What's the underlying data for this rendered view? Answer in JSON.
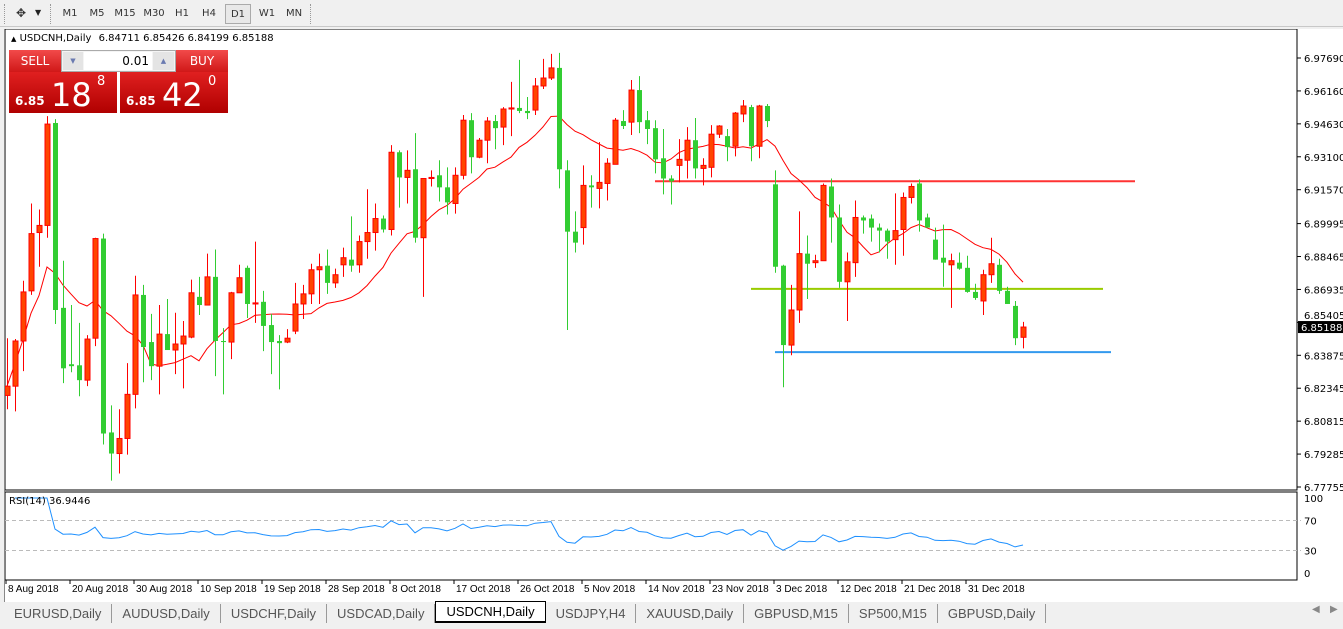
{
  "toolbar": {
    "tool_icon": "crosshair-arrows-icon",
    "timeframes": [
      "M1",
      "M5",
      "M15",
      "M30",
      "H1",
      "H4",
      "D1",
      "W1",
      "MN"
    ],
    "active_timeframe": "D1"
  },
  "chart": {
    "symbol": "USDCNH,Daily",
    "ohlc": "6.84711 6.85426 6.84199 6.85188"
  },
  "trade_panel": {
    "sell_label": "SELL",
    "buy_label": "BUY",
    "lot": "0.01",
    "sell_price": {
      "prefix": "6.85",
      "big": "18",
      "small": "8"
    },
    "buy_price": {
      "prefix": "6.85",
      "big": "42",
      "small": "0"
    }
  },
  "chart_data": {
    "type": "candlestick",
    "price_ticks": [
      "6.97690",
      "6.96160",
      "6.94630",
      "6.93100",
      "6.91570",
      "6.89995",
      "6.88465",
      "6.86935",
      "6.85405",
      "6.83875",
      "6.82345",
      "6.80815",
      "6.79285",
      "6.77755"
    ],
    "ylim": [
      6.77755,
      6.9769
    ],
    "current_price": "6.85188",
    "date_labels": [
      {
        "bar": 0,
        "label": "8 Aug 2018"
      },
      {
        "bar": 8,
        "label": "20 Aug 2018"
      },
      {
        "bar": 16,
        "label": "30 Aug 2018"
      },
      {
        "bar": 24,
        "label": "10 Sep 2018"
      },
      {
        "bar": 32,
        "label": "19 Sep 2018"
      },
      {
        "bar": 40,
        "label": "28 Sep 2018"
      },
      {
        "bar": 48,
        "label": "8 Oct 2018"
      },
      {
        "bar": 56,
        "label": "17 Oct 2018"
      },
      {
        "bar": 64,
        "label": "26 Oct 2018"
      },
      {
        "bar": 72,
        "label": "5 Nov 2018"
      },
      {
        "bar": 80,
        "label": "14 Nov 2018"
      },
      {
        "bar": 88,
        "label": "23 Nov 2018"
      },
      {
        "bar": 96,
        "label": "3 Dec 2018"
      },
      {
        "bar": 104,
        "label": "12 Dec 2018"
      },
      {
        "bar": 112,
        "label": "21 Dec 2018"
      },
      {
        "bar": 120,
        "label": "31 Dec 2018"
      }
    ],
    "horizontal_lines": [
      {
        "price": 6.9196,
        "color": "#ff3333",
        "from_bar": 81,
        "to_bar": 141
      },
      {
        "price": 6.8696,
        "color": "#99cc00",
        "from_bar": 93,
        "to_bar": 137
      },
      {
        "price": 6.8402,
        "color": "#3399ee",
        "from_bar": 96,
        "to_bar": 138
      }
    ],
    "colors": {
      "bull": "#ff4500",
      "bull_border": "#ff0000",
      "bear": "#32cd32",
      "ma": "#ff0000",
      "rsi": "#1e90ff"
    },
    "candles_ohlc": [
      [
        6.8201,
        6.8467,
        6.8137,
        6.8244
      ],
      [
        6.8244,
        6.8463,
        6.8127,
        6.8454
      ],
      [
        6.8454,
        6.8734,
        6.8314,
        6.8682
      ],
      [
        6.8687,
        6.9093,
        6.8668,
        6.8953
      ],
      [
        6.8958,
        6.9065,
        6.8799,
        6.8991
      ],
      [
        6.8991,
        6.9499,
        6.8934,
        6.9462
      ],
      [
        6.9467,
        6.9485,
        6.8533,
        6.8598
      ],
      [
        6.8608,
        6.8827,
        6.8258,
        6.8327
      ],
      [
        6.8346,
        6.8621,
        6.8309,
        6.8337
      ],
      [
        6.8341,
        6.8538,
        6.8197,
        6.8272
      ],
      [
        6.8272,
        6.8481,
        6.8244,
        6.8463
      ],
      [
        6.8467,
        6.8934,
        6.843,
        6.893
      ],
      [
        6.893,
        6.8953,
        6.7973,
        6.8024
      ],
      [
        6.8029,
        6.8155,
        6.7805,
        6.7931
      ],
      [
        6.7931,
        6.8137,
        6.7838,
        6.8001
      ],
      [
        6.8001,
        6.8351,
        6.7926,
        6.8206
      ],
      [
        6.8206,
        6.8757,
        6.8141,
        6.8668
      ],
      [
        6.8668,
        6.8715,
        6.8262,
        6.8426
      ],
      [
        6.8449,
        6.858,
        6.8272,
        6.8337
      ],
      [
        6.8337,
        6.8621,
        6.8206,
        6.8486
      ],
      [
        6.8486,
        6.8649,
        6.8412,
        6.8412
      ],
      [
        6.8412,
        6.8585,
        6.83,
        6.844
      ],
      [
        6.844,
        6.8547,
        6.8234,
        6.8477
      ],
      [
        6.8472,
        6.8739,
        6.8467,
        6.8678
      ],
      [
        6.8659,
        6.8752,
        6.8575,
        6.8621
      ],
      [
        6.8621,
        6.886,
        6.8621,
        6.8752
      ],
      [
        6.8752,
        6.8879,
        6.8291,
        6.8454
      ],
      [
        6.8454,
        6.8514,
        6.8206,
        6.8449
      ],
      [
        6.8449,
        6.8682,
        6.837,
        6.8678
      ],
      [
        6.8678,
        6.8808,
        6.8678,
        6.8748
      ],
      [
        6.8794,
        6.8804,
        6.8561,
        6.8626
      ],
      [
        6.8626,
        6.8916,
        6.8538,
        6.8631
      ],
      [
        6.8636,
        6.8687,
        6.8407,
        6.8524
      ],
      [
        6.8528,
        6.858,
        6.83,
        6.8449
      ],
      [
        6.8454,
        6.8481,
        6.8229,
        6.8444
      ],
      [
        6.8449,
        6.8509,
        6.8444,
        6.8467
      ],
      [
        6.85,
        6.8724,
        6.8486,
        6.8626
      ],
      [
        6.8626,
        6.8715,
        6.8556,
        6.8673
      ],
      [
        6.8673,
        6.8813,
        6.8626,
        6.8785
      ],
      [
        6.8785,
        6.886,
        6.8626,
        6.8799
      ],
      [
        6.8804,
        6.8879,
        6.8673,
        6.8724
      ],
      [
        6.8724,
        6.879,
        6.8701,
        6.8762
      ],
      [
        6.8808,
        6.8888,
        6.8752,
        6.8841
      ],
      [
        6.8832,
        6.9033,
        6.8776,
        6.8804
      ],
      [
        6.8808,
        6.8944,
        6.8771,
        6.8916
      ],
      [
        6.8916,
        6.9159,
        6.8836,
        6.8958
      ],
      [
        6.8958,
        6.9093,
        6.8874,
        6.9023
      ],
      [
        6.9023,
        6.9037,
        6.8958,
        6.8972
      ],
      [
        6.8972,
        6.9364,
        6.8944,
        6.9331
      ],
      [
        6.9331,
        6.934,
        6.9074,
        6.9214
      ],
      [
        6.9214,
        6.934,
        6.9093,
        6.9247
      ],
      [
        6.9252,
        6.942,
        6.8911,
        6.8934
      ],
      [
        6.8934,
        6.9209,
        6.8659,
        6.9209
      ],
      [
        6.9209,
        6.9247,
        6.9172,
        6.9214
      ],
      [
        6.9224,
        6.9294,
        6.9102,
        6.9168
      ],
      [
        6.9168,
        6.9261,
        6.9042,
        6.9098
      ],
      [
        6.9093,
        6.9261,
        6.9046,
        6.9224
      ],
      [
        6.9224,
        6.9504,
        6.9205,
        6.948
      ],
      [
        6.948,
        6.9513,
        6.9233,
        6.9308
      ],
      [
        6.9308,
        6.9397,
        6.9303,
        6.9387
      ],
      [
        6.9387,
        6.9494,
        6.928,
        6.9476
      ],
      [
        6.9476,
        6.9504,
        6.9345,
        6.9443
      ],
      [
        6.9448,
        6.9541,
        6.9364,
        6.9532
      ],
      [
        6.9532,
        6.9658,
        6.9406,
        6.9537
      ],
      [
        6.9537,
        6.976,
        6.9513,
        6.9523
      ],
      [
        6.9523,
        6.9588,
        6.9485,
        6.9513
      ],
      [
        6.9527,
        6.9676,
        6.9504,
        6.9639
      ],
      [
        6.9639,
        6.9765,
        6.9625,
        6.9676
      ],
      [
        6.9676,
        6.9788,
        6.9667,
        6.9723
      ],
      [
        6.9723,
        6.9793,
        6.9163,
        6.9252
      ],
      [
        6.9247,
        6.9294,
        6.8505,
        6.8962
      ],
      [
        6.8962,
        6.9056,
        6.8865,
        6.8911
      ],
      [
        6.8981,
        6.927,
        6.8902,
        6.9177
      ],
      [
        6.9177,
        6.9224,
        6.9074,
        6.9168
      ],
      [
        6.9163,
        6.9378,
        6.907,
        6.9191
      ],
      [
        6.9186,
        6.9303,
        6.9107,
        6.928
      ],
      [
        6.9275,
        6.949,
        6.9275,
        6.948
      ],
      [
        6.9476,
        6.9527,
        6.9439,
        6.9453
      ],
      [
        6.9471,
        6.9667,
        6.9411,
        6.962
      ],
      [
        6.962,
        6.9685,
        6.942,
        6.9471
      ],
      [
        6.948,
        6.9523,
        6.9369,
        6.9439
      ],
      [
        6.9443,
        6.948,
        6.9233,
        6.9298
      ],
      [
        6.9303,
        6.9439,
        6.9135,
        6.9209
      ],
      [
        6.9209,
        6.9224,
        6.9088,
        6.9196
      ],
      [
        6.927,
        6.9392,
        6.9191,
        6.9298
      ],
      [
        6.9294,
        6.9448,
        6.9209,
        6.9387
      ],
      [
        6.9387,
        6.949,
        6.9209,
        6.9256
      ],
      [
        6.9256,
        6.9303,
        6.9177,
        6.927
      ],
      [
        6.9261,
        6.9457,
        6.9214,
        6.9415
      ],
      [
        6.9415,
        6.9457,
        6.9397,
        6.9453
      ],
      [
        6.9406,
        6.9439,
        6.9289,
        6.9355
      ],
      [
        6.9359,
        6.9518,
        6.9312,
        6.9513
      ],
      [
        6.9509,
        6.9574,
        6.9471,
        6.9546
      ],
      [
        6.9541,
        6.9551,
        6.9289,
        6.9359
      ],
      [
        6.9359,
        6.9551,
        6.9303,
        6.9546
      ],
      [
        6.9546,
        6.9555,
        6.9448,
        6.9476
      ],
      [
        6.9182,
        6.9247,
        6.8771,
        6.8799
      ],
      [
        6.8804,
        6.8808,
        6.8239,
        6.8435
      ],
      [
        6.8435,
        6.8715,
        6.8388,
        6.8598
      ],
      [
        6.8598,
        6.9056,
        6.8538,
        6.886
      ],
      [
        6.886,
        6.8944,
        6.8649,
        6.8813
      ],
      [
        6.8818,
        6.8855,
        6.8794,
        6.8827
      ],
      [
        6.8827,
        6.9186,
        6.8827,
        6.9177
      ],
      [
        6.9172,
        6.9209,
        6.8911,
        6.9028
      ],
      [
        6.9028,
        6.9088,
        6.8701,
        6.8729
      ],
      [
        6.8729,
        6.8865,
        6.8547,
        6.8822
      ],
      [
        6.8818,
        6.9107,
        6.8752,
        6.9028
      ],
      [
        6.9028,
        6.9037,
        6.8953,
        6.9014
      ],
      [
        6.9023,
        6.9042,
        6.8916,
        6.8981
      ],
      [
        6.8981,
        6.9,
        6.8865,
        6.8967
      ],
      [
        6.8967,
        6.8976,
        6.8836,
        6.8916
      ],
      [
        6.8925,
        6.914,
        6.8808,
        6.8967
      ],
      [
        6.8972,
        6.9144,
        6.885,
        6.9121
      ],
      [
        6.9121,
        6.9186,
        6.9093,
        6.9172
      ],
      [
        6.9186,
        6.9205,
        6.8962,
        6.9014
      ],
      [
        6.9028,
        6.9046,
        6.8981,
        6.8981
      ],
      [
        6.8925,
        6.8981,
        6.8832,
        6.8832
      ],
      [
        6.8841,
        6.8995,
        6.8706,
        6.8818
      ],
      [
        6.8808,
        6.886,
        6.8608,
        6.8827
      ],
      [
        6.8818,
        6.8865,
        6.8785,
        6.879
      ],
      [
        6.8794,
        6.885,
        6.8678,
        6.8682
      ],
      [
        6.8682,
        6.872,
        6.8645,
        6.8654
      ],
      [
        6.864,
        6.8785,
        6.8575,
        6.8762
      ],
      [
        6.8762,
        6.8934,
        6.8724,
        6.8813
      ],
      [
        6.8808,
        6.8836,
        6.8673,
        6.8687
      ],
      [
        6.8687,
        6.8706,
        6.8626,
        6.8626
      ],
      [
        6.8617,
        6.864,
        6.8435,
        6.8467
      ],
      [
        6.84711,
        6.85426,
        6.84199,
        6.85188
      ]
    ]
  },
  "rsi": {
    "label": "RSI(14) 36.9446",
    "levels": [
      70,
      30
    ],
    "ticks": [
      "100",
      "70",
      "30",
      "0"
    ]
  },
  "tabs": [
    "EURUSD,Daily",
    "AUDUSD,Daily",
    "USDCHF,Daily",
    "USDCAD,Daily",
    "USDCNH,Daily",
    "USDJPY,H4",
    "XAUUSD,Daily",
    "GBPUSD,M15",
    "SP500,M15",
    "GBPUSD,Daily"
  ],
  "active_tab": "USDCNH,Daily"
}
